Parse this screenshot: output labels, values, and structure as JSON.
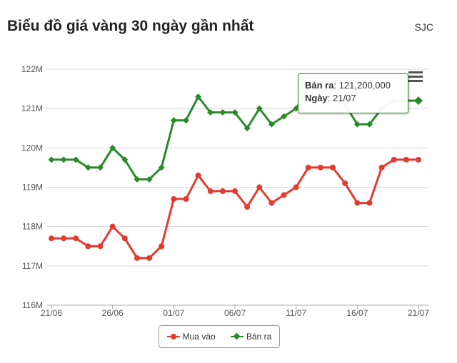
{
  "header": {
    "title": "Biểu đồ giá vàng 30 ngày gần nhất",
    "brand": "SJC"
  },
  "tooltip": {
    "sell_label": "Bán ra",
    "sell_value": "121,200,000",
    "date_label": "Ngày",
    "date_value": "21/07"
  },
  "chart_data": {
    "type": "line",
    "ylim": [
      116,
      122
    ],
    "yticks": [
      "116M",
      "117M",
      "118M",
      "119M",
      "120M",
      "121M",
      "122M"
    ],
    "xticks": [
      "21/06",
      "26/06",
      "01/07",
      "06/07",
      "11/07",
      "16/07",
      "21/07"
    ],
    "grid": true,
    "legend_position": "bottom-center",
    "series": [
      {
        "name": "Mua vào",
        "color": "#e53a2f",
        "marker": "circle",
        "values": [
          117.7,
          117.7,
          117.7,
          117.5,
          117.5,
          118.0,
          117.7,
          117.2,
          117.2,
          117.5,
          118.7,
          118.7,
          119.3,
          118.9,
          118.9,
          118.9,
          118.5,
          119.0,
          118.6,
          118.8,
          119.0,
          119.5,
          119.5,
          119.5,
          119.1,
          118.6,
          118.6,
          119.5,
          119.7,
          119.7,
          119.7
        ]
      },
      {
        "name": "Bán ra",
        "color": "#2a8a2a",
        "marker": "diamond",
        "values": [
          119.7,
          119.7,
          119.7,
          119.5,
          119.5,
          120.0,
          119.7,
          119.2,
          119.2,
          119.5,
          120.7,
          120.7,
          121.3,
          120.9,
          120.9,
          120.9,
          120.5,
          121.0,
          120.6,
          120.8,
          121.0,
          121.5,
          121.5,
          121.5,
          121.1,
          120.6,
          120.6,
          121.0,
          121.2,
          121.2,
          121.2
        ]
      }
    ]
  }
}
